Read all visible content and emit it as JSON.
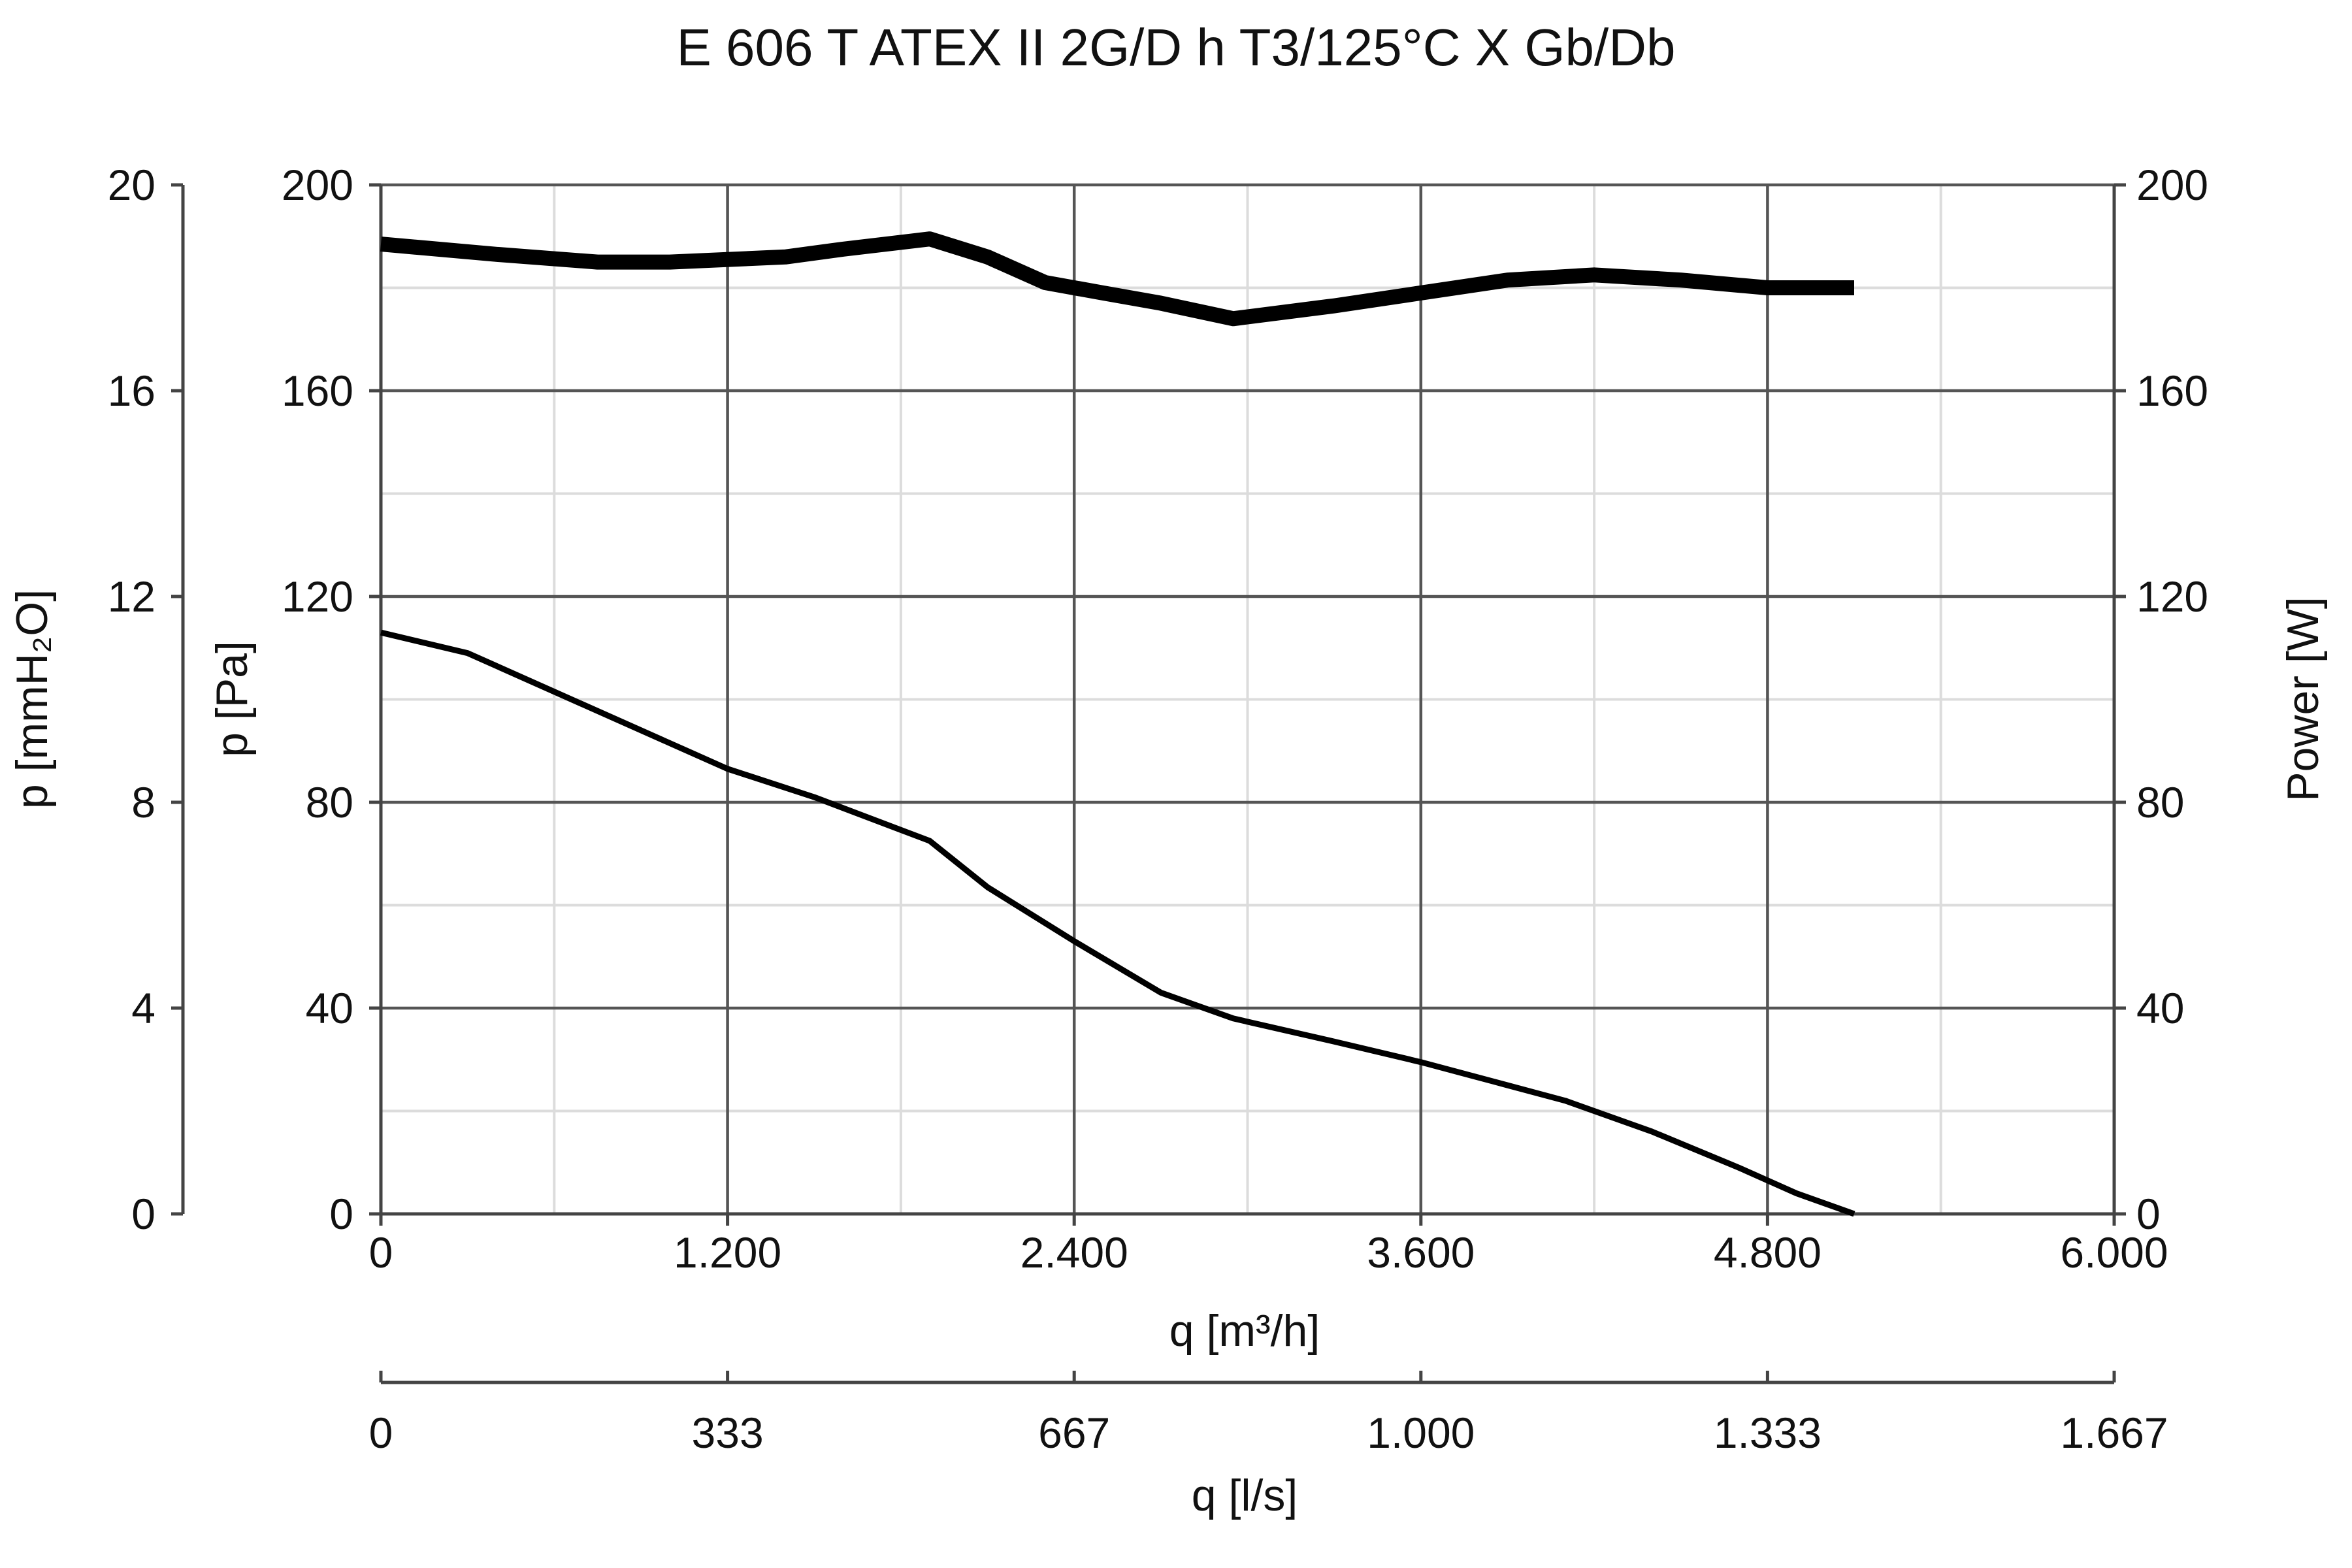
{
  "chart_data": {
    "type": "line",
    "title": "E 606 T ATEX II 2G/D h T3/125°C X Gb/Db",
    "x": {
      "label": "q [m³/h]",
      "range": [
        0,
        6000
      ],
      "ticks": [
        0,
        1200,
        2400,
        3600,
        4800,
        6000
      ],
      "tick_labels": [
        "0",
        "1.200",
        "2.400",
        "3.600",
        "4.800",
        "6.000"
      ]
    },
    "x2": {
      "label": "q [l/s]",
      "ticks": [
        0,
        1200,
        2400,
        3600,
        4800,
        6000
      ],
      "tick_labels": [
        "0",
        "333",
        "667",
        "1.000",
        "1.333",
        "1.667"
      ]
    },
    "y_left_outer": {
      "label": "p [mmH₂O]",
      "tick_labels": [
        "0",
        "4",
        "8",
        "12",
        "16",
        "20"
      ]
    },
    "y_left": {
      "label": "p [Pa]",
      "range": [
        0,
        200
      ],
      "ticks": [
        0,
        40,
        80,
        120,
        160,
        200
      ],
      "tick_labels": [
        "0",
        "40",
        "80",
        "120",
        "160",
        "200"
      ]
    },
    "y_right": {
      "label": "Power [W]",
      "range": [
        0,
        200
      ],
      "tick_labels": [
        "0",
        "40",
        "80",
        "120",
        "160",
        "200"
      ]
    },
    "grid": true,
    "series": [
      {
        "axis": "y_left",
        "values_xy": [
          [
            0,
            113
          ],
          [
            300,
            109
          ],
          [
            700,
            99
          ],
          [
            1200,
            86.5
          ],
          [
            1500,
            81
          ],
          [
            1900,
            72.5
          ],
          [
            2100,
            63.5
          ],
          [
            2400,
            53
          ],
          [
            2700,
            43
          ],
          [
            2950,
            38
          ],
          [
            3300,
            33.5
          ],
          [
            3600,
            29.5
          ],
          [
            3900,
            25
          ],
          [
            4100,
            22
          ],
          [
            4400,
            16
          ],
          [
            4700,
            9
          ],
          [
            4900,
            4
          ],
          [
            5100,
            0
          ]
        ]
      },
      {
        "axis": "y_right",
        "values_xy": [
          [
            0,
            188.5
          ],
          [
            400,
            186.5
          ],
          [
            750,
            185
          ],
          [
            1000,
            185
          ],
          [
            1400,
            186
          ],
          [
            1600,
            187.5
          ],
          [
            1900,
            189.5
          ],
          [
            2100,
            186
          ],
          [
            2300,
            181
          ],
          [
            2500,
            179
          ],
          [
            2700,
            177
          ],
          [
            2950,
            174
          ],
          [
            3300,
            176.5
          ],
          [
            3600,
            179
          ],
          [
            3900,
            181.5
          ],
          [
            4200,
            182.5
          ],
          [
            4500,
            181.5
          ],
          [
            4800,
            180
          ],
          [
            5100,
            180
          ]
        ]
      }
    ]
  },
  "colors": {
    "background": "#ffffff",
    "line": "#000000",
    "major_grid": "#555555",
    "minor_grid": "#dcdcdc"
  }
}
